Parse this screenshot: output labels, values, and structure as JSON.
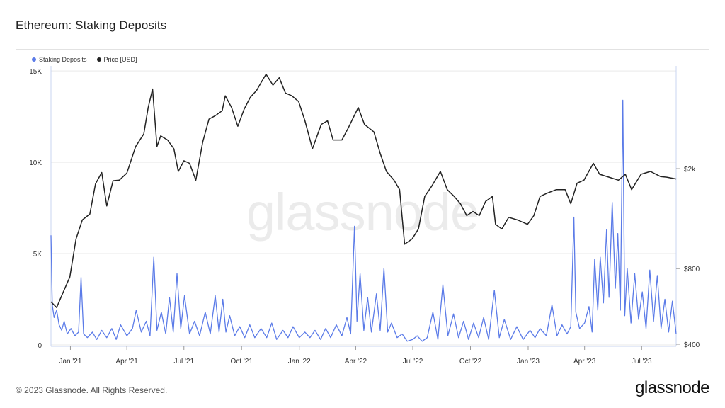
{
  "page": {
    "title": "Ethereum: Staking Deposits",
    "copyright": "© 2023 Glassnode. All Rights Reserved.",
    "brand": "glassnode",
    "watermark": "glassnode"
  },
  "colors": {
    "deposits": "#5b7be8",
    "price": "#222222",
    "grid": "#e9e9e9",
    "axis": "#c8d4f0",
    "watermark": "#ebebeb"
  },
  "chart_data": {
    "type": "line",
    "legend": [
      "Staking Deposits",
      "Price [USD]"
    ],
    "legend_position": "top-left",
    "grid": true,
    "x_range": [
      "2020-12-01",
      "2023-08-25"
    ],
    "x_ticks": [
      {
        "date": "2021-01-01",
        "label": "Jan '21"
      },
      {
        "date": "2021-04-01",
        "label": "Apr '21"
      },
      {
        "date": "2021-07-01",
        "label": "Jul '21"
      },
      {
        "date": "2021-10-01",
        "label": "Oct '21"
      },
      {
        "date": "2022-01-01",
        "label": "Jan '22"
      },
      {
        "date": "2022-04-01",
        "label": "Apr '22"
      },
      {
        "date": "2022-07-01",
        "label": "Jul '22"
      },
      {
        "date": "2022-10-01",
        "label": "Oct '22"
      },
      {
        "date": "2023-01-01",
        "label": "Jan '23"
      },
      {
        "date": "2023-04-01",
        "label": "Apr '23"
      },
      {
        "date": "2023-07-01",
        "label": "Jul '23"
      }
    ],
    "y_left": {
      "scale": "linear",
      "range": [
        0,
        15200
      ],
      "ticks": [
        {
          "value": 0,
          "label": "0"
        },
        {
          "value": 5000,
          "label": "5K"
        },
        {
          "value": 10000,
          "label": "10K"
        },
        {
          "value": 15000,
          "label": "15K"
        }
      ]
    },
    "y_right": {
      "scale": "log",
      "range": [
        400,
        4900
      ],
      "ticks": [
        {
          "value": 400,
          "label": "$400"
        },
        {
          "value": 800,
          "label": "$800"
        },
        {
          "value": 2000,
          "label": "$2k"
        }
      ]
    },
    "series": [
      {
        "name": "Staking Deposits",
        "axis": "left",
        "points": [
          [
            "2020-12-01",
            6000
          ],
          [
            "2020-12-03",
            2200
          ],
          [
            "2020-12-06",
            1500
          ],
          [
            "2020-12-10",
            1900
          ],
          [
            "2020-12-14",
            1100
          ],
          [
            "2020-12-18",
            800
          ],
          [
            "2020-12-22",
            1300
          ],
          [
            "2020-12-27",
            600
          ],
          [
            "2021-01-02",
            900
          ],
          [
            "2021-01-08",
            500
          ],
          [
            "2021-01-14",
            700
          ],
          [
            "2021-01-18",
            3700
          ],
          [
            "2021-01-22",
            600
          ],
          [
            "2021-01-28",
            400
          ],
          [
            "2021-02-05",
            700
          ],
          [
            "2021-02-12",
            300
          ],
          [
            "2021-02-20",
            800
          ],
          [
            "2021-02-28",
            400
          ],
          [
            "2021-03-08",
            900
          ],
          [
            "2021-03-15",
            300
          ],
          [
            "2021-03-22",
            1100
          ],
          [
            "2021-04-01",
            500
          ],
          [
            "2021-04-10",
            900
          ],
          [
            "2021-04-16",
            1900
          ],
          [
            "2021-04-24",
            700
          ],
          [
            "2021-05-02",
            1300
          ],
          [
            "2021-05-08",
            500
          ],
          [
            "2021-05-14",
            4800
          ],
          [
            "2021-05-19",
            800
          ],
          [
            "2021-05-26",
            1800
          ],
          [
            "2021-06-02",
            600
          ],
          [
            "2021-06-08",
            2600
          ],
          [
            "2021-06-14",
            700
          ],
          [
            "2021-06-20",
            3900
          ],
          [
            "2021-06-26",
            900
          ],
          [
            "2021-07-02",
            2700
          ],
          [
            "2021-07-10",
            600
          ],
          [
            "2021-07-18",
            1300
          ],
          [
            "2021-07-26",
            500
          ],
          [
            "2021-08-04",
            1800
          ],
          [
            "2021-08-12",
            600
          ],
          [
            "2021-08-20",
            2700
          ],
          [
            "2021-08-26",
            700
          ],
          [
            "2021-09-01",
            2500
          ],
          [
            "2021-09-06",
            700
          ],
          [
            "2021-09-12",
            1600
          ],
          [
            "2021-09-20",
            500
          ],
          [
            "2021-09-28",
            1000
          ],
          [
            "2021-10-06",
            400
          ],
          [
            "2021-10-14",
            1100
          ],
          [
            "2021-10-22",
            400
          ],
          [
            "2021-11-01",
            900
          ],
          [
            "2021-11-10",
            400
          ],
          [
            "2021-11-18",
            1200
          ],
          [
            "2021-11-26",
            300
          ],
          [
            "2021-12-06",
            800
          ],
          [
            "2021-12-14",
            400
          ],
          [
            "2021-12-22",
            1000
          ],
          [
            "2022-01-01",
            400
          ],
          [
            "2022-01-10",
            700
          ],
          [
            "2022-01-18",
            400
          ],
          [
            "2022-01-26",
            800
          ],
          [
            "2022-02-04",
            300
          ],
          [
            "2022-02-12",
            900
          ],
          [
            "2022-02-20",
            400
          ],
          [
            "2022-03-01",
            1100
          ],
          [
            "2022-03-10",
            500
          ],
          [
            "2022-03-18",
            1500
          ],
          [
            "2022-03-24",
            600
          ],
          [
            "2022-03-30",
            6500
          ],
          [
            "2022-04-03",
            1300
          ],
          [
            "2022-04-08",
            3900
          ],
          [
            "2022-04-14",
            800
          ],
          [
            "2022-04-20",
            2600
          ],
          [
            "2022-04-26",
            700
          ],
          [
            "2022-05-04",
            2800
          ],
          [
            "2022-05-10",
            800
          ],
          [
            "2022-05-16",
            4200
          ],
          [
            "2022-05-22",
            700
          ],
          [
            "2022-05-28",
            1200
          ],
          [
            "2022-06-06",
            400
          ],
          [
            "2022-06-14",
            600
          ],
          [
            "2022-06-22",
            200
          ],
          [
            "2022-07-01",
            300
          ],
          [
            "2022-07-08",
            500
          ],
          [
            "2022-07-16",
            200
          ],
          [
            "2022-07-24",
            400
          ],
          [
            "2022-08-02",
            1800
          ],
          [
            "2022-08-10",
            300
          ],
          [
            "2022-08-18",
            3300
          ],
          [
            "2022-08-26",
            500
          ],
          [
            "2022-09-04",
            1700
          ],
          [
            "2022-09-12",
            400
          ],
          [
            "2022-09-20",
            1300
          ],
          [
            "2022-09-28",
            300
          ],
          [
            "2022-10-06",
            1200
          ],
          [
            "2022-10-14",
            400
          ],
          [
            "2022-10-22",
            1500
          ],
          [
            "2022-10-30",
            300
          ],
          [
            "2022-11-08",
            3000
          ],
          [
            "2022-11-16",
            400
          ],
          [
            "2022-11-24",
            1400
          ],
          [
            "2022-12-04",
            300
          ],
          [
            "2022-12-14",
            1000
          ],
          [
            "2022-12-24",
            300
          ],
          [
            "2023-01-04",
            800
          ],
          [
            "2023-01-12",
            400
          ],
          [
            "2023-01-20",
            900
          ],
          [
            "2023-01-30",
            500
          ],
          [
            "2023-02-08",
            2200
          ],
          [
            "2023-02-16",
            500
          ],
          [
            "2023-02-24",
            1100
          ],
          [
            "2023-03-04",
            600
          ],
          [
            "2023-03-10",
            1000
          ],
          [
            "2023-03-15",
            7000
          ],
          [
            "2023-03-18",
            1800
          ],
          [
            "2023-03-24",
            900
          ],
          [
            "2023-04-01",
            1200
          ],
          [
            "2023-04-08",
            2100
          ],
          [
            "2023-04-13",
            700
          ],
          [
            "2023-04-17",
            4700
          ],
          [
            "2023-04-22",
            1900
          ],
          [
            "2023-04-26",
            4800
          ],
          [
            "2023-05-01",
            2300
          ],
          [
            "2023-05-06",
            6300
          ],
          [
            "2023-05-10",
            2600
          ],
          [
            "2023-05-15",
            7800
          ],
          [
            "2023-05-20",
            3100
          ],
          [
            "2023-05-24",
            6100
          ],
          [
            "2023-05-28",
            1900
          ],
          [
            "2023-06-01",
            13400
          ],
          [
            "2023-06-04",
            1600
          ],
          [
            "2023-06-08",
            4200
          ],
          [
            "2023-06-14",
            1200
          ],
          [
            "2023-06-20",
            3900
          ],
          [
            "2023-06-26",
            1400
          ],
          [
            "2023-07-02",
            2900
          ],
          [
            "2023-07-08",
            900
          ],
          [
            "2023-07-14",
            4100
          ],
          [
            "2023-07-20",
            1300
          ],
          [
            "2023-07-26",
            3800
          ],
          [
            "2023-08-01",
            900
          ],
          [
            "2023-08-07",
            2500
          ],
          [
            "2023-08-13",
            700
          ],
          [
            "2023-08-19",
            2400
          ],
          [
            "2023-08-25",
            600
          ]
        ]
      },
      {
        "name": "Price [USD]",
        "axis": "right",
        "points": [
          [
            "2020-12-01",
            590
          ],
          [
            "2020-12-10",
            560
          ],
          [
            "2020-12-20",
            640
          ],
          [
            "2020-12-31",
            740
          ],
          [
            "2021-01-10",
            1050
          ],
          [
            "2021-01-20",
            1250
          ],
          [
            "2021-02-01",
            1320
          ],
          [
            "2021-02-10",
            1740
          ],
          [
            "2021-02-20",
            1930
          ],
          [
            "2021-02-28",
            1420
          ],
          [
            "2021-03-10",
            1790
          ],
          [
            "2021-03-20",
            1800
          ],
          [
            "2021-04-01",
            1920
          ],
          [
            "2021-04-15",
            2450
          ],
          [
            "2021-04-28",
            2750
          ],
          [
            "2021-05-05",
            3500
          ],
          [
            "2021-05-12",
            4150
          ],
          [
            "2021-05-19",
            2450
          ],
          [
            "2021-05-25",
            2700
          ],
          [
            "2021-06-05",
            2600
          ],
          [
            "2021-06-15",
            2400
          ],
          [
            "2021-06-22",
            1950
          ],
          [
            "2021-07-01",
            2150
          ],
          [
            "2021-07-10",
            2100
          ],
          [
            "2021-07-20",
            1800
          ],
          [
            "2021-07-31",
            2550
          ],
          [
            "2021-08-10",
            3150
          ],
          [
            "2021-08-20",
            3250
          ],
          [
            "2021-08-31",
            3400
          ],
          [
            "2021-09-05",
            3900
          ],
          [
            "2021-09-15",
            3500
          ],
          [
            "2021-09-25",
            2950
          ],
          [
            "2021-10-05",
            3450
          ],
          [
            "2021-10-15",
            3850
          ],
          [
            "2021-10-25",
            4100
          ],
          [
            "2021-11-01",
            4400
          ],
          [
            "2021-11-09",
            4750
          ],
          [
            "2021-11-20",
            4300
          ],
          [
            "2021-11-30",
            4600
          ],
          [
            "2021-12-10",
            4000
          ],
          [
            "2021-12-20",
            3900
          ],
          [
            "2021-12-31",
            3700
          ],
          [
            "2022-01-10",
            3100
          ],
          [
            "2022-01-22",
            2400
          ],
          [
            "2022-02-05",
            3000
          ],
          [
            "2022-02-15",
            3100
          ],
          [
            "2022-02-24",
            2600
          ],
          [
            "2022-03-10",
            2600
          ],
          [
            "2022-03-20",
            2900
          ],
          [
            "2022-03-31",
            3300
          ],
          [
            "2022-04-05",
            3500
          ],
          [
            "2022-04-15",
            3000
          ],
          [
            "2022-04-30",
            2800
          ],
          [
            "2022-05-10",
            2300
          ],
          [
            "2022-05-20",
            1950
          ],
          [
            "2022-06-01",
            1800
          ],
          [
            "2022-06-10",
            1650
          ],
          [
            "2022-06-18",
            1000
          ],
          [
            "2022-06-30",
            1050
          ],
          [
            "2022-07-10",
            1150
          ],
          [
            "2022-07-20",
            1550
          ],
          [
            "2022-07-31",
            1700
          ],
          [
            "2022-08-14",
            1950
          ],
          [
            "2022-08-25",
            1650
          ],
          [
            "2022-09-05",
            1550
          ],
          [
            "2022-09-15",
            1450
          ],
          [
            "2022-09-25",
            1300
          ],
          [
            "2022-10-05",
            1350
          ],
          [
            "2022-10-15",
            1300
          ],
          [
            "2022-10-25",
            1480
          ],
          [
            "2022-11-05",
            1550
          ],
          [
            "2022-11-10",
            1200
          ],
          [
            "2022-11-20",
            1150
          ],
          [
            "2022-12-01",
            1280
          ],
          [
            "2022-12-15",
            1250
          ],
          [
            "2022-12-31",
            1200
          ],
          [
            "2023-01-10",
            1300
          ],
          [
            "2023-01-20",
            1550
          ],
          [
            "2023-02-01",
            1600
          ],
          [
            "2023-02-15",
            1650
          ],
          [
            "2023-03-01",
            1650
          ],
          [
            "2023-03-10",
            1450
          ],
          [
            "2023-03-20",
            1750
          ],
          [
            "2023-03-31",
            1800
          ],
          [
            "2023-04-15",
            2100
          ],
          [
            "2023-04-25",
            1900
          ],
          [
            "2023-05-10",
            1850
          ],
          [
            "2023-05-25",
            1800
          ],
          [
            "2023-06-05",
            1900
          ],
          [
            "2023-06-15",
            1650
          ],
          [
            "2023-06-30",
            1900
          ],
          [
            "2023-07-15",
            1950
          ],
          [
            "2023-07-31",
            1860
          ],
          [
            "2023-08-10",
            1850
          ],
          [
            "2023-08-25",
            1820
          ]
        ]
      }
    ]
  }
}
